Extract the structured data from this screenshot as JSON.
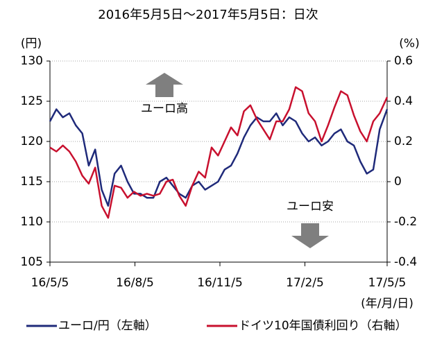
{
  "chart_data": {
    "type": "line",
    "title": "2016年5月5日～2017年5月5日：日次",
    "y_label": "(円)",
    "y2_label": "(%)",
    "x_label": "(年/月/日)",
    "annotations": [
      "ユーロ高",
      "ユーロ安"
    ],
    "x": [
      "2016-05-05",
      "2016-05-12",
      "2016-05-19",
      "2016-05-26",
      "2016-06-02",
      "2016-06-09",
      "2016-06-16",
      "2016-06-23",
      "2016-06-30",
      "2016-07-07",
      "2016-07-14",
      "2016-07-21",
      "2016-07-28",
      "2016-08-04",
      "2016-08-11",
      "2016-08-18",
      "2016-08-25",
      "2016-09-01",
      "2016-09-08",
      "2016-09-15",
      "2016-09-22",
      "2016-09-29",
      "2016-10-06",
      "2016-10-13",
      "2016-10-20",
      "2016-10-27",
      "2016-11-03",
      "2016-11-10",
      "2016-11-17",
      "2016-11-24",
      "2016-12-01",
      "2016-12-08",
      "2016-12-15",
      "2016-12-22",
      "2016-12-29",
      "2017-01-05",
      "2017-01-12",
      "2017-01-19",
      "2017-01-26",
      "2017-02-02",
      "2017-02-09",
      "2017-02-16",
      "2017-02-23",
      "2017-03-02",
      "2017-03-09",
      "2017-03-16",
      "2017-03-23",
      "2017-03-30",
      "2017-04-06",
      "2017-04-13",
      "2017-04-20",
      "2017-04-27",
      "2017-05-05"
    ],
    "xlim": [
      "2016-05-05",
      "2017-05-05"
    ],
    "xticks": [
      {
        "value": "2016-05-05",
        "label": "16/5/5"
      },
      {
        "value": "2016-08-05",
        "label": "16/8/5"
      },
      {
        "value": "2016-11-05",
        "label": "16/11/5"
      },
      {
        "value": "2017-02-05",
        "label": "17/2/5"
      },
      {
        "value": "2017-05-05",
        "label": "17/5/5"
      }
    ],
    "ylim": [
      105,
      130
    ],
    "yticks": [
      105,
      110,
      115,
      120,
      125,
      130
    ],
    "y2lim": [
      -0.4,
      0.6
    ],
    "y2ticks": [
      -0.4,
      -0.2,
      0,
      0.2,
      0.4,
      0.6
    ],
    "grid": true,
    "series": [
      {
        "name": "ユーロ/円（左軸）",
        "color": "#1f2a7a",
        "axis": "y",
        "values": [
          122.5,
          124,
          123,
          123.5,
          122,
          121,
          117,
          119,
          114,
          112,
          116,
          117,
          115,
          113.5,
          113.5,
          113,
          113,
          115,
          115.5,
          114.5,
          113.5,
          113,
          114.5,
          115,
          114,
          114.5,
          115,
          116.5,
          117,
          118.5,
          120.5,
          122,
          123,
          122.5,
          122.5,
          123.5,
          122,
          123,
          122.5,
          121,
          120,
          120.5,
          119.5,
          120,
          121,
          121.5,
          120,
          119.5,
          117.5,
          116,
          116.5,
          121.5,
          124
        ]
      },
      {
        "name": "ドイツ10年国債利回り（右軸）",
        "color": "#c8102e",
        "axis": "y2",
        "values": [
          0.17,
          0.15,
          0.18,
          0.15,
          0.1,
          0.03,
          -0.01,
          0.07,
          -0.12,
          -0.18,
          -0.02,
          -0.03,
          -0.08,
          -0.05,
          -0.07,
          -0.06,
          -0.07,
          -0.06,
          0,
          0.01,
          -0.07,
          -0.12,
          -0.02,
          0.05,
          0.02,
          0.17,
          0.13,
          0.2,
          0.27,
          0.23,
          0.35,
          0.38,
          0.31,
          0.26,
          0.21,
          0.3,
          0.3,
          0.36,
          0.47,
          0.45,
          0.34,
          0.3,
          0.2,
          0.28,
          0.37,
          0.45,
          0.43,
          0.33,
          0.25,
          0.2,
          0.3,
          0.34,
          0.42
        ]
      }
    ]
  }
}
